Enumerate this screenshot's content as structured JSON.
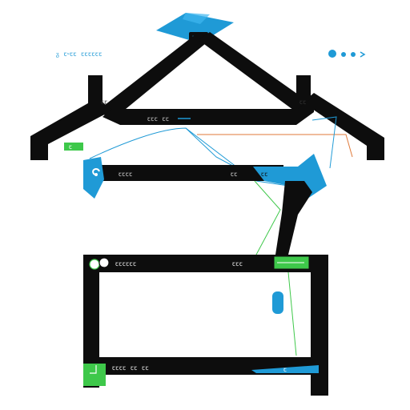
{
  "header": {
    "caption": "ᵹ ꞇ⸚ꞇꞇ ꞇꞇꞇꞇꞇꞇ",
    "top_mark": "ꞇꞇ"
  },
  "labels": {
    "left_small": "ꞇꞇ",
    "right_small": "ꞇꞇ",
    "mid_caption": "ꞇꞇꞇ ꞇꞇ",
    "mid_badge": "ꞇ",
    "row2_left": "ꞇꞇꞇꞇ",
    "row2_right": "ꞇꞇ",
    "row2_blue": "ꞇꞇ",
    "row3_left": "ꞇꞇꞇꞇꞇꞇ",
    "row3_right": "ꞇꞇꞇ",
    "row4_left": "ꞇꞇꞇꞇ ꞇꞇ ꞇꞇ",
    "row4_badge": "ꞇ"
  },
  "colors": {
    "stroke": "#0d0d0d",
    "accent_blue": "#1f9ad6",
    "accent_green": "#3ec84a",
    "accent_orange": "#e07a3a",
    "background": "#ffffff"
  },
  "icons": {
    "top": "diamond-icon",
    "dots": "dots-icon",
    "mid_left": "gear-icon",
    "row3_left": "circle-icon",
    "row4_left": "check-icon"
  }
}
